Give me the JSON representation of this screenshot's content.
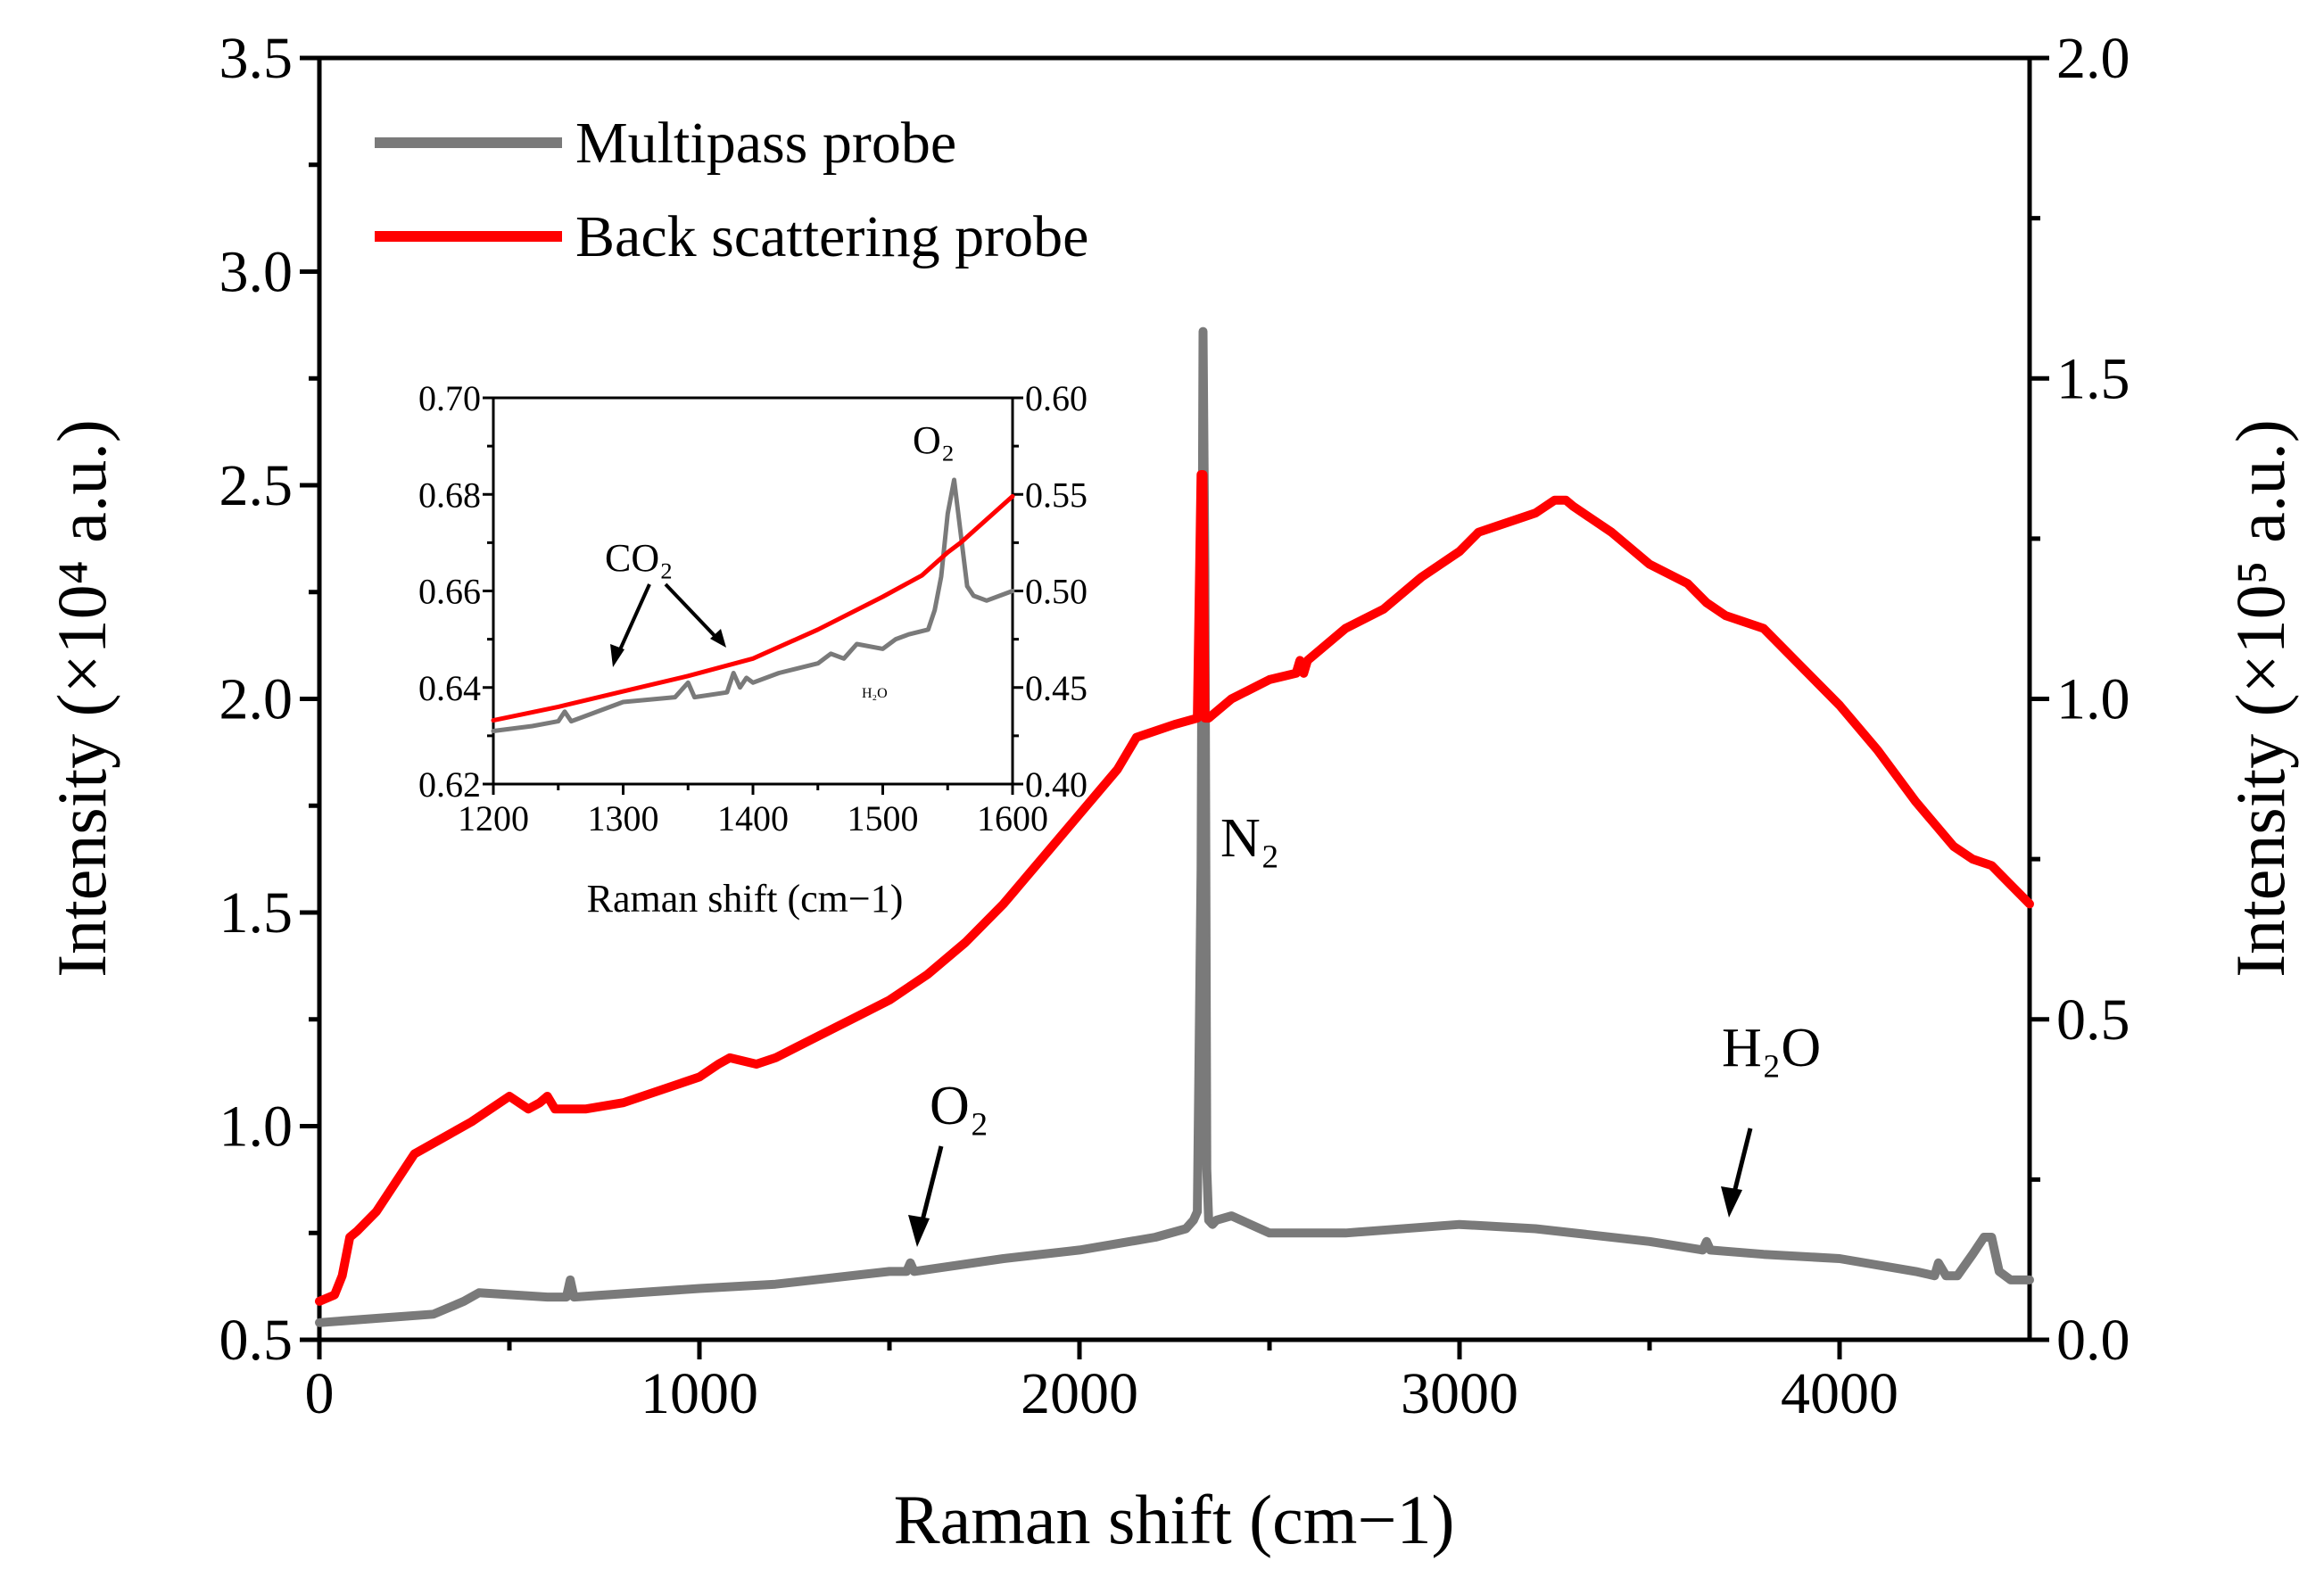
{
  "chart_data": {
    "type": "line",
    "xlabel": "Raman shift (cm−1)",
    "ylabel_left": "Intensity (×10⁴ a.u.)",
    "ylabel_right": "Intensity (×10⁵ a.u.)",
    "xlim": [
      0,
      4500
    ],
    "ylim_left": [
      0.5,
      3.5
    ],
    "ylim_right": [
      0.0,
      2.0
    ],
    "x_ticks": [
      "0",
      "1000",
      "2000",
      "3000",
      "4000"
    ],
    "y_left_ticks": [
      "0.5",
      "1.0",
      "1.5",
      "2.0",
      "2.5",
      "3.0",
      "3.5"
    ],
    "y_right_ticks": [
      "0.0",
      "0.5",
      "1.0",
      "1.5",
      "2.0"
    ],
    "legend_position": "top-left",
    "series": [
      {
        "name": "Multipass probe",
        "color": "#7a7a7a",
        "axis": "left",
        "x": [
          0,
          150,
          300,
          380,
          420,
          600,
          650,
          660,
          670,
          1000,
          1200,
          1500,
          1545,
          1555,
          1565,
          1800,
          2000,
          2200,
          2280,
          2300,
          2310,
          2320,
          2325,
          2330,
          2335,
          2340,
          2350,
          2360,
          2400,
          2500,
          2700,
          3000,
          3200,
          3500,
          3640,
          3650,
          3660,
          3800,
          4000,
          4200,
          4250,
          4260,
          4280,
          4310,
          4350,
          4380,
          4400,
          4420,
          4450,
          4500
        ],
        "values": [
          0.54,
          0.55,
          0.56,
          0.59,
          0.61,
          0.6,
          0.6,
          0.64,
          0.6,
          0.62,
          0.63,
          0.66,
          0.66,
          0.68,
          0.66,
          0.69,
          0.71,
          0.74,
          0.76,
          0.78,
          0.8,
          1.6,
          2.86,
          2.3,
          0.9,
          0.78,
          0.77,
          0.78,
          0.79,
          0.75,
          0.75,
          0.77,
          0.76,
          0.73,
          0.71,
          0.73,
          0.71,
          0.7,
          0.69,
          0.66,
          0.65,
          0.68,
          0.65,
          0.65,
          0.7,
          0.74,
          0.74,
          0.66,
          0.64,
          0.64
        ]
      },
      {
        "name": "Back scattering probe",
        "color": "#ff0000",
        "axis": "right",
        "x": [
          0,
          40,
          60,
          80,
          100,
          150,
          250,
          400,
          500,
          550,
          580,
          600,
          620,
          650,
          700,
          800,
          1000,
          1050,
          1080,
          1150,
          1200,
          1300,
          1400,
          1500,
          1600,
          1700,
          1800,
          1900,
          2000,
          2100,
          2150,
          2250,
          2310,
          2320,
          2325,
          2330,
          2340,
          2400,
          2500,
          2570,
          2580,
          2590,
          2600,
          2700,
          2800,
          2900,
          3000,
          3050,
          3100,
          3200,
          3250,
          3280,
          3300,
          3400,
          3500,
          3600,
          3650,
          3700,
          3800,
          3900,
          4000,
          4100,
          4200,
          4300,
          4350,
          4400,
          4450,
          4500
        ],
        "values": [
          0.06,
          0.07,
          0.1,
          0.16,
          0.17,
          0.2,
          0.29,
          0.34,
          0.38,
          0.36,
          0.37,
          0.38,
          0.36,
          0.36,
          0.36,
          0.37,
          0.41,
          0.43,
          0.44,
          0.43,
          0.44,
          0.47,
          0.5,
          0.53,
          0.57,
          0.62,
          0.68,
          0.75,
          0.82,
          0.89,
          0.94,
          0.96,
          0.97,
          1.35,
          1.35,
          0.97,
          0.97,
          1.0,
          1.03,
          1.04,
          1.06,
          1.04,
          1.06,
          1.11,
          1.14,
          1.19,
          1.23,
          1.26,
          1.27,
          1.29,
          1.31,
          1.31,
          1.3,
          1.26,
          1.21,
          1.18,
          1.15,
          1.13,
          1.11,
          1.05,
          0.99,
          0.92,
          0.84,
          0.77,
          0.75,
          0.74,
          0.71,
          0.68
        ]
      }
    ],
    "annotations": {
      "n2": "N₂",
      "o2": "O₂",
      "h2o": "H₂O"
    },
    "inset": {
      "xlabel": "Raman shift (cm−1)",
      "xlim": [
        1200,
        1600
      ],
      "ylim_left": [
        0.62,
        0.7
      ],
      "ylim_right": [
        0.4,
        0.6
      ],
      "x_ticks": [
        "1200",
        "1300",
        "1400",
        "1500",
        "1600"
      ],
      "y_left_ticks": [
        "0.62",
        "0.64",
        "0.66",
        "0.68",
        "0.70"
      ],
      "y_right_ticks": [
        "0.40",
        "0.45",
        "0.50",
        "0.55",
        "0.60"
      ],
      "annotations": {
        "o2": "O₂",
        "co2": "CO₂",
        "h2o": "H₂O"
      },
      "series": [
        {
          "name": "Multipass probe",
          "color": "#7a7a7a",
          "axis": "left",
          "x": [
            1200,
            1230,
            1250,
            1255,
            1260,
            1290,
            1300,
            1340,
            1350,
            1355,
            1380,
            1385,
            1390,
            1395,
            1400,
            1420,
            1450,
            1460,
            1470,
            1480,
            1500,
            1510,
            1520,
            1535,
            1540,
            1545,
            1550,
            1555,
            1560,
            1565,
            1570,
            1580,
            1600
          ],
          "values": [
            0.631,
            0.632,
            0.633,
            0.635,
            0.633,
            0.636,
            0.637,
            0.638,
            0.641,
            0.638,
            0.639,
            0.643,
            0.64,
            0.642,
            0.641,
            0.643,
            0.645,
            0.647,
            0.646,
            0.649,
            0.648,
            0.65,
            0.651,
            0.652,
            0.656,
            0.663,
            0.676,
            0.683,
            0.672,
            0.661,
            0.659,
            0.658,
            0.66
          ]
        },
        {
          "name": "Back scattering probe",
          "color": "#ff0000",
          "axis": "right",
          "x": [
            1200,
            1250,
            1300,
            1350,
            1400,
            1450,
            1500,
            1530,
            1550,
            1560,
            1600
          ],
          "values": [
            0.433,
            0.44,
            0.448,
            0.456,
            0.465,
            0.48,
            0.497,
            0.508,
            0.52,
            0.525,
            0.549
          ]
        }
      ]
    }
  }
}
